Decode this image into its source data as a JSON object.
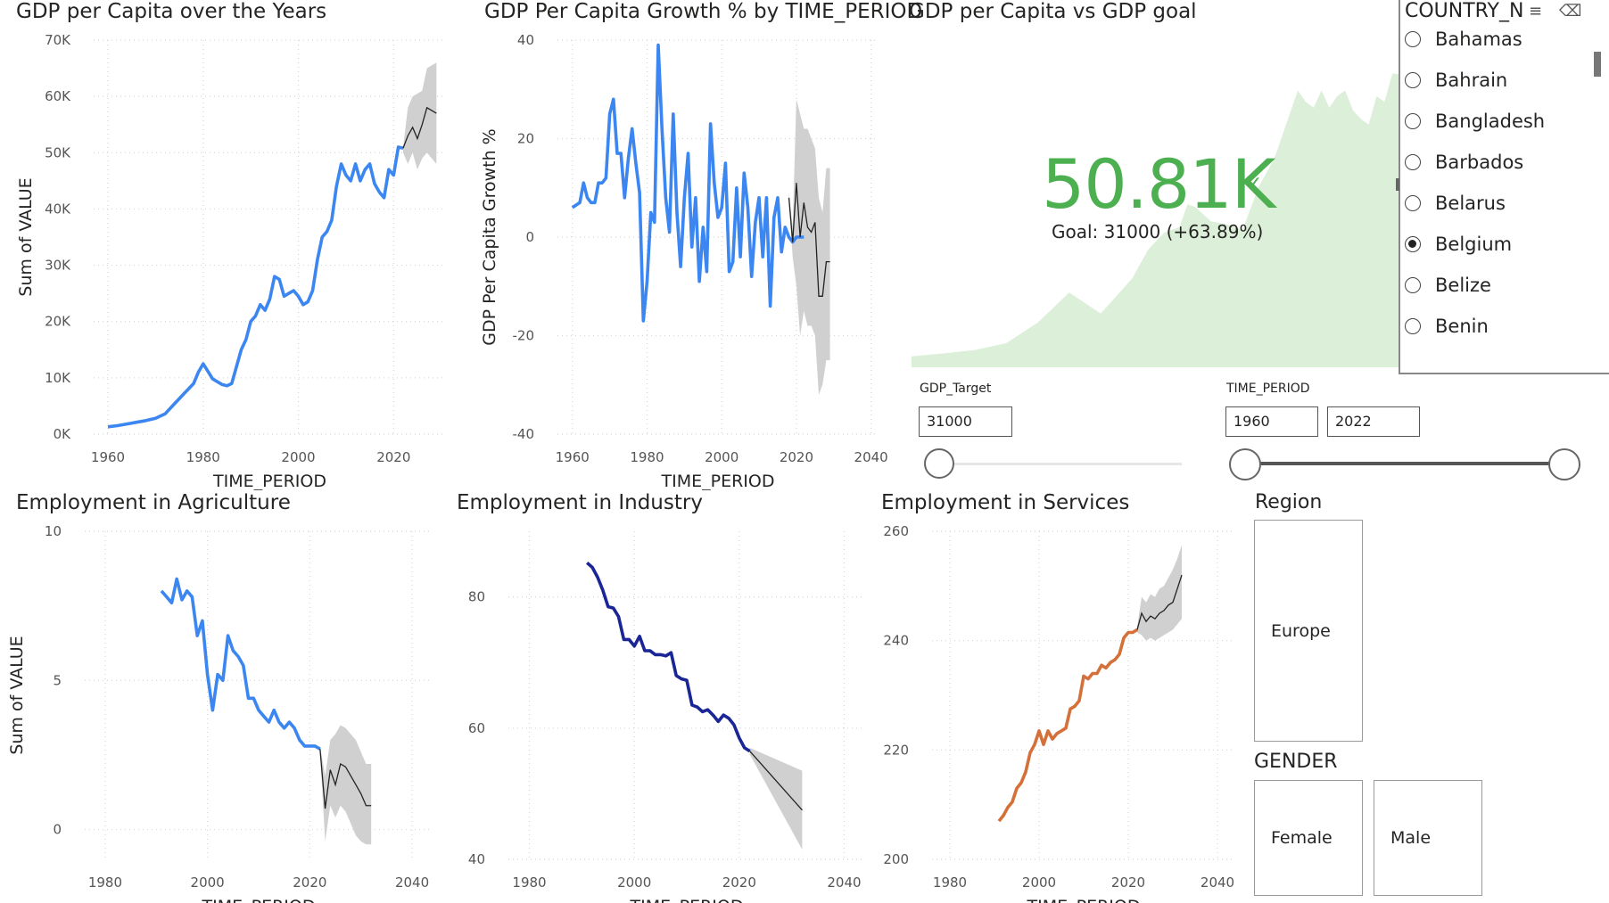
{
  "visuals": {
    "gdp_over_years": {
      "title": "GDP per Capita over the Years"
    },
    "gdp_growth": {
      "title": "GDP Per Capita Growth % by TIME_PERIOD"
    },
    "kpi": {
      "title": "GDP per Capita vs GDP goal",
      "value": "50.81K",
      "goal_text": "Goal: 31000 (+63.89%)"
    },
    "emp_agri": {
      "title": "Employment in Agriculture"
    },
    "emp_industry": {
      "title": "Employment in Industry"
    },
    "emp_services": {
      "title": "Employment in Services"
    }
  },
  "country_slicer": {
    "header": "COUNTRY_N",
    "items": [
      {
        "label": "Bahamas",
        "selected": false
      },
      {
        "label": "Bahrain",
        "selected": false
      },
      {
        "label": "Bangladesh",
        "selected": false
      },
      {
        "label": "Barbados",
        "selected": false
      },
      {
        "label": "Belarus",
        "selected": false
      },
      {
        "label": "Belgium",
        "selected": true
      },
      {
        "label": "Belize",
        "selected": false
      },
      {
        "label": "Benin",
        "selected": false
      }
    ]
  },
  "gdp_target_slicer": {
    "label": "GDP_Target",
    "value": "31000"
  },
  "time_period_slicer": {
    "label": "TIME_PERIOD",
    "from": "1960",
    "to": "2022"
  },
  "region_slicer": {
    "title": "Region",
    "items": [
      "Europe"
    ]
  },
  "gender_slicer": {
    "title": "GENDER",
    "items": [
      "Female",
      "Male"
    ]
  },
  "colors": {
    "blue": "#3b86f0",
    "navy": "#1a2596",
    "orange": "#d4703a",
    "green_kpi": "#4caf50",
    "area_green": "#dbefd9",
    "band_gray": "#d0d0d0"
  },
  "chart_data": [
    {
      "id": "gdp_over_years",
      "type": "line",
      "xlabel": "TIME_PERIOD",
      "ylabel": "Sum of VALUE",
      "xlim": [
        1957,
        2031
      ],
      "ylim": [
        0,
        70000
      ],
      "xticks": [
        1960,
        1980,
        2000,
        2020
      ],
      "yticks": [
        0,
        10000,
        20000,
        30000,
        40000,
        50000,
        60000,
        70000
      ],
      "ytick_labels": [
        "0K",
        "10K",
        "20K",
        "30K",
        "40K",
        "50K",
        "60K",
        "70K"
      ],
      "series": [
        {
          "color": "#3b86f0",
          "x": [
            1960,
            1962,
            1964,
            1966,
            1968,
            1970,
            1972,
            1974,
            1976,
            1978,
            1979,
            1980,
            1982,
            1984,
            1985,
            1986,
            1988,
            1989,
            1990,
            1991,
            1992,
            1993,
            1994,
            1995,
            1996,
            1997,
            1998,
            1999,
            2000,
            2001,
            2002,
            2003,
            2004,
            2005,
            2006,
            2007,
            2008,
            2009,
            2010,
            2011,
            2012,
            2013,
            2014,
            2015,
            2016,
            2017,
            2018,
            2019,
            2020,
            2021,
            2022
          ],
          "y": [
            1300,
            1500,
            1800,
            2100,
            2400,
            2800,
            3600,
            5400,
            7200,
            9000,
            11000,
            12500,
            9800,
            8800,
            8600,
            9000,
            15000,
            16800,
            20000,
            21000,
            23000,
            22000,
            24000,
            28000,
            27500,
            24500,
            25000,
            25500,
            24500,
            23000,
            23500,
            25500,
            31000,
            35000,
            36000,
            38000,
            44000,
            48000,
            46000,
            45000,
            48000,
            45000,
            47000,
            48000,
            44500,
            43000,
            42000,
            47000,
            46000,
            51000,
            50800
          ]
        }
      ],
      "forecast": {
        "x": [
          2022,
          2023,
          2024,
          2025,
          2026,
          2027,
          2028,
          2029
        ],
        "y": [
          50800,
          53000,
          54500,
          52500,
          55000,
          58000,
          57500,
          57000
        ],
        "lower": [
          50000,
          48000,
          50000,
          47000,
          49000,
          50000,
          49000,
          48000
        ],
        "upper": [
          51000,
          58000,
          60000,
          60500,
          61000,
          65000,
          65500,
          66000
        ]
      }
    },
    {
      "id": "gdp_growth",
      "type": "line",
      "xlabel": "TIME_PERIOD",
      "ylabel": "GDP Per Capita Growth %",
      "xlim": [
        1956,
        2042
      ],
      "ylim": [
        -40,
        40
      ],
      "xticks": [
        1960,
        1980,
        2000,
        2020,
        2040
      ],
      "yticks": [
        -40,
        -20,
        0,
        20,
        40
      ],
      "series": [
        {
          "color": "#3b86f0",
          "x": [
            1960,
            1962,
            1963,
            1964,
            1965,
            1966,
            1967,
            1968,
            1969,
            1970,
            1971,
            1972,
            1973,
            1974,
            1975,
            1976,
            1977,
            1978,
            1979,
            1980,
            1981,
            1982,
            1983,
            1984,
            1985,
            1986,
            1987,
            1988,
            1989,
            1990,
            1991,
            1992,
            1993,
            1994,
            1995,
            1996,
            1997,
            1998,
            1999,
            2000,
            2001,
            2002,
            2003,
            2004,
            2005,
            2006,
            2007,
            2008,
            2009,
            2010,
            2011,
            2012,
            2013,
            2014,
            2015,
            2016,
            2017,
            2018,
            2019,
            2020,
            2021,
            2022
          ],
          "y": [
            6,
            7,
            11,
            8,
            7,
            7,
            11,
            11,
            12,
            25,
            28,
            17,
            17,
            8,
            16,
            22,
            15,
            9,
            -17,
            -9,
            5,
            3,
            39,
            22,
            8,
            1,
            25,
            5,
            -6,
            8,
            17,
            -2,
            8,
            -9,
            2,
            -7,
            23,
            11,
            4,
            6,
            15,
            -7,
            -5,
            10,
            -4,
            13,
            6,
            -8,
            3,
            8,
            -4,
            8,
            -14,
            4,
            8,
            -3,
            2,
            0,
            -1,
            0,
            0,
            0
          ]
        }
      ],
      "forecast": {
        "x": [
          2018,
          2019,
          2020,
          2021,
          2022,
          2023,
          2024,
          2025,
          2026,
          2027,
          2028,
          2029
        ],
        "y": [
          8,
          -1,
          11,
          0,
          7,
          2,
          1,
          3,
          -12,
          -12,
          -5,
          -5
        ],
        "lower": [
          7,
          -4,
          -10,
          -20,
          -15,
          -18,
          -18,
          -20,
          -32,
          -30,
          -25,
          -25
        ],
        "upper": [
          9,
          2,
          28,
          25,
          22,
          22,
          20,
          18,
          8,
          5,
          14,
          14
        ]
      }
    },
    {
      "id": "kpi_trend",
      "type": "area",
      "series": [
        {
          "color": "#dbefd9",
          "x": [
            1960,
            1964,
            1968,
            1972,
            1976,
            1980,
            1984,
            1988,
            1990,
            1992,
            1994,
            1995,
            1996,
            1998,
            2000,
            2002,
            2004,
            2006,
            2008,
            2009,
            2010,
            2011,
            2012,
            2013,
            2014,
            2015,
            2016,
            2017,
            2018,
            2019,
            2020,
            2021,
            2022
          ],
          "y": [
            1300,
            1800,
            2400,
            3600,
            7200,
            12500,
            8800,
            15000,
            20000,
            23000,
            24000,
            28000,
            27500,
            25000,
            24500,
            23500,
            31000,
            36000,
            44000,
            48000,
            46000,
            45000,
            48000,
            45000,
            47000,
            48000,
            44500,
            43000,
            42000,
            47000,
            46000,
            51000,
            50800
          ]
        }
      ]
    },
    {
      "id": "emp_agri",
      "type": "line",
      "xlabel": "TIME_PERIOD",
      "ylabel": "Sum of VALUE",
      "xlim": [
        1976,
        2044
      ],
      "ylim": [
        -1,
        10
      ],
      "xticks": [
        1980,
        2000,
        2020,
        2040
      ],
      "yticks": [
        0,
        5,
        10
      ],
      "series": [
        {
          "color": "#3b86f0",
          "x": [
            1991,
            1992,
            1993,
            1994,
            1995,
            1996,
            1997,
            1998,
            1999,
            2000,
            2001,
            2002,
            2003,
            2004,
            2005,
            2006,
            2007,
            2008,
            2009,
            2010,
            2011,
            2012,
            2013,
            2014,
            2015,
            2016,
            2017,
            2018,
            2019,
            2020,
            2021,
            2022
          ],
          "y": [
            8.0,
            7.8,
            7.6,
            8.4,
            7.7,
            8.0,
            7.8,
            6.5,
            7.0,
            5.2,
            4.0,
            5.2,
            5.0,
            6.5,
            6.0,
            5.8,
            5.5,
            4.4,
            4.4,
            4.0,
            3.8,
            3.6,
            4.0,
            3.6,
            3.4,
            3.6,
            3.4,
            3.0,
            2.8,
            2.8,
            2.8,
            2.7
          ]
        }
      ],
      "forecast": {
        "x": [
          2022,
          2023,
          2024,
          2025,
          2026,
          2027,
          2028,
          2029,
          2030,
          2031,
          2032
        ],
        "y": [
          2.7,
          0.7,
          2.0,
          1.5,
          2.2,
          2.1,
          1.8,
          1.5,
          1.2,
          0.8,
          0.8
        ],
        "lower": [
          2.6,
          -0.4,
          0.8,
          0.4,
          0.8,
          0.6,
          0.2,
          -0.2,
          -0.4,
          -0.5,
          -0.5
        ],
        "upper": [
          2.8,
          1.8,
          3.0,
          3.2,
          3.5,
          3.4,
          3.2,
          3.0,
          2.6,
          2.2,
          2.2
        ]
      }
    },
    {
      "id": "emp_industry",
      "type": "line",
      "xlabel": "TIME_PERIOD",
      "ylabel": "Sum of VALUE",
      "xlim": [
        1976,
        2044
      ],
      "ylim": [
        40,
        90
      ],
      "xticks": [
        1980,
        2000,
        2020,
        2040
      ],
      "yticks": [
        40,
        60,
        80
      ],
      "series": [
        {
          "color": "#1a2596",
          "x": [
            1991,
            1992,
            1993,
            1994,
            1995,
            1996,
            1997,
            1998,
            1999,
            2000,
            2001,
            2002,
            2003,
            2004,
            2005,
            2006,
            2007,
            2008,
            2009,
            2010,
            2011,
            2012,
            2013,
            2014,
            2015,
            2016,
            2017,
            2018,
            2019,
            2020,
            2021,
            2022
          ],
          "y": [
            85.2,
            84.5,
            83,
            81,
            78.5,
            78.3,
            77,
            73.5,
            73.5,
            72.5,
            74,
            71.8,
            71.8,
            71.2,
            71.2,
            71,
            71.5,
            68,
            67.5,
            67.3,
            63.5,
            63.2,
            62.5,
            62.8,
            62,
            61,
            62,
            61.5,
            60.5,
            58.5,
            57,
            56.5
          ]
        }
      ],
      "forecast": {
        "x": [
          2022,
          2032
        ],
        "y": [
          56.5,
          47.5
        ],
        "lower": [
          56,
          41.5
        ],
        "upper": [
          57,
          53.5
        ]
      }
    },
    {
      "id": "emp_services",
      "type": "line",
      "xlabel": "TIME_PERIOD",
      "ylabel": "Sum of VALUE",
      "xlim": [
        1976,
        2044
      ],
      "ylim": [
        200,
        260
      ],
      "xticks": [
        1980,
        2000,
        2020,
        2040
      ],
      "yticks": [
        200,
        220,
        240,
        260
      ],
      "series": [
        {
          "color": "#d4703a",
          "x": [
            1991,
            1992,
            1993,
            1994,
            1995,
            1996,
            1997,
            1998,
            1999,
            2000,
            2001,
            2002,
            2003,
            2004,
            2005,
            2006,
            2007,
            2008,
            2009,
            2010,
            2011,
            2012,
            2013,
            2014,
            2015,
            2016,
            2017,
            2018,
            2019,
            2020,
            2021,
            2022
          ],
          "y": [
            207,
            208,
            209.5,
            210.5,
            213,
            214,
            216,
            219.5,
            221,
            223.5,
            221,
            223.5,
            222,
            223,
            223.5,
            224,
            227.5,
            228,
            229,
            233.5,
            233,
            234,
            234,
            235.5,
            235,
            236,
            236.5,
            237.5,
            240.5,
            241.5,
            241.5,
            242
          ]
        }
      ],
      "forecast": {
        "x": [
          2022,
          2023,
          2024,
          2025,
          2026,
          2027,
          2028,
          2029,
          2030,
          2031,
          2032
        ],
        "y": [
          242,
          245,
          243.5,
          244.5,
          244,
          245,
          245.5,
          246.5,
          247,
          249.5,
          252
        ],
        "lower": [
          241.5,
          241,
          240,
          240.5,
          240,
          240.5,
          241,
          241.5,
          242,
          243,
          244
        ],
        "upper": [
          242.5,
          248,
          247,
          248.5,
          248,
          249.5,
          250,
          251.5,
          253,
          255,
          257.5
        ]
      }
    }
  ]
}
